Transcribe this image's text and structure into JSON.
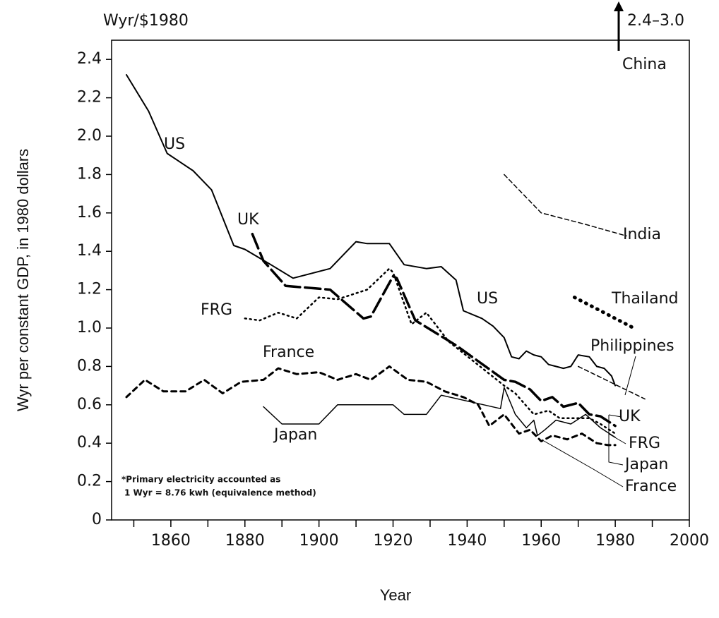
{
  "chart_data": {
    "type": "line",
    "unit_label": "Wyr/$1980",
    "y_label": "Wyr per constant GDP, in 1980 dollars",
    "x_label": "Year",
    "china_annotation": {
      "range": "2.4–3.0",
      "name": "China"
    },
    "footnote": [
      "*Primary electricity accounted as",
      "1 Wyr = 8.76 kwh (equivalence method)"
    ],
    "xlim": [
      1844,
      2000
    ],
    "ylim": [
      0,
      2.5
    ],
    "xticks": [
      1860,
      1880,
      1900,
      1920,
      1940,
      1960,
      1980,
      2000
    ],
    "xminorticks": [
      1850,
      1870,
      1890,
      1910,
      1930,
      1950,
      1970,
      1990
    ],
    "yticks": [
      0,
      0.2,
      0.4,
      0.6,
      0.8,
      {
        "value": 1.0,
        "label": "1.0"
      },
      1.2,
      1.4,
      1.6,
      1.8,
      {
        "value": 2.0,
        "label": "2.0"
      },
      2.2,
      2.4
    ],
    "series": [
      {
        "name": "US",
        "color": "#000",
        "style": "solid",
        "x": [
          1848,
          1854,
          1859,
          1866,
          1871,
          1877,
          1880,
          1887,
          1893,
          1903,
          1910,
          1913,
          1919,
          1923,
          1929,
          1933,
          1937,
          1939,
          1944,
          1947,
          1950,
          1952,
          1954,
          1956,
          1958,
          1960,
          1962,
          1964,
          1966,
          1968,
          1970,
          1973,
          1975,
          1977,
          1979,
          1980
        ],
        "values": [
          2.32,
          2.13,
          1.91,
          1.82,
          1.72,
          1.43,
          1.41,
          1.33,
          1.26,
          1.31,
          1.45,
          1.44,
          1.44,
          1.33,
          1.31,
          1.32,
          1.25,
          1.09,
          1.05,
          1.01,
          0.95,
          0.85,
          0.84,
          0.88,
          0.86,
          0.85,
          0.81,
          0.8,
          0.79,
          0.8,
          0.86,
          0.85,
          0.8,
          0.79,
          0.75,
          0.7
        ]
      },
      {
        "name": "UK",
        "color": "#000",
        "style": "long-dash",
        "x": [
          1882,
          1885,
          1891,
          1897,
          1903,
          1912,
          1914,
          1920,
          1921,
          1926,
          1937,
          1950,
          1953,
          1957,
          1960,
          1963,
          1966,
          1970,
          1973,
          1976,
          1980
        ],
        "values": [
          1.49,
          1.35,
          1.22,
          1.21,
          1.2,
          1.05,
          1.06,
          1.27,
          1.26,
          1.04,
          0.91,
          0.73,
          0.72,
          0.68,
          0.62,
          0.64,
          0.59,
          0.61,
          0.55,
          0.54,
          0.49
        ]
      },
      {
        "name": "FRG",
        "color": "#000",
        "style": "dotted",
        "x": [
          1880,
          1884,
          1889,
          1894,
          1900,
          1905,
          1913,
          1919,
          1920,
          1925,
          1929,
          1935,
          1950,
          1953,
          1958,
          1962,
          1965,
          1969,
          1973,
          1976,
          1980
        ],
        "values": [
          1.05,
          1.04,
          1.08,
          1.05,
          1.16,
          1.15,
          1.2,
          1.31,
          1.29,
          1.02,
          1.08,
          0.93,
          0.7,
          0.66,
          0.55,
          0.57,
          0.53,
          0.53,
          0.53,
          0.5,
          0.45
        ]
      },
      {
        "name": "France",
        "color": "#000",
        "style": "dashed",
        "x": [
          1848,
          1853,
          1858,
          1864,
          1869,
          1874,
          1879,
          1885,
          1889,
          1894,
          1900,
          1905,
          1910,
          1914,
          1919,
          1924,
          1929,
          1934,
          1939,
          1943,
          1946,
          1950,
          1954,
          1957,
          1960,
          1963,
          1967,
          1971,
          1975,
          1978,
          1980
        ],
        "values": [
          0.64,
          0.73,
          0.67,
          0.67,
          0.73,
          0.66,
          0.72,
          0.73,
          0.79,
          0.76,
          0.77,
          0.73,
          0.76,
          0.73,
          0.8,
          0.73,
          0.72,
          0.67,
          0.64,
          0.6,
          0.49,
          0.55,
          0.45,
          0.47,
          0.41,
          0.44,
          0.42,
          0.45,
          0.4,
          0.39,
          0.39
        ]
      },
      {
        "name": "Japan",
        "color": "#000",
        "style": "thin",
        "x": [
          1885,
          1890,
          1900,
          1905,
          1920,
          1923,
          1929,
          1933,
          1949,
          1950,
          1953,
          1956,
          1958,
          1959,
          1961,
          1964,
          1968,
          1972,
          1976,
          1980
        ],
        "values": [
          0.59,
          0.5,
          0.5,
          0.6,
          0.6,
          0.55,
          0.55,
          0.65,
          0.58,
          0.69,
          0.55,
          0.48,
          0.52,
          0.44,
          0.47,
          0.52,
          0.5,
          0.55,
          0.48,
          0.43
        ]
      },
      {
        "name": "India",
        "color": "#000",
        "style": "thin-dash",
        "x": [
          1950,
          1960,
          1972,
          1983
        ],
        "values": [
          1.8,
          1.6,
          1.54,
          1.48
        ]
      },
      {
        "name": "Thailand",
        "color": "#000",
        "style": "heavy-dot",
        "x": [
          1969,
          1975,
          1985
        ],
        "values": [
          1.16,
          1.1,
          1.0
        ]
      },
      {
        "name": "Philippines",
        "color": "#000",
        "style": "thin-dash",
        "x": [
          1970,
          1988
        ],
        "values": [
          0.8,
          0.63
        ]
      }
    ]
  }
}
